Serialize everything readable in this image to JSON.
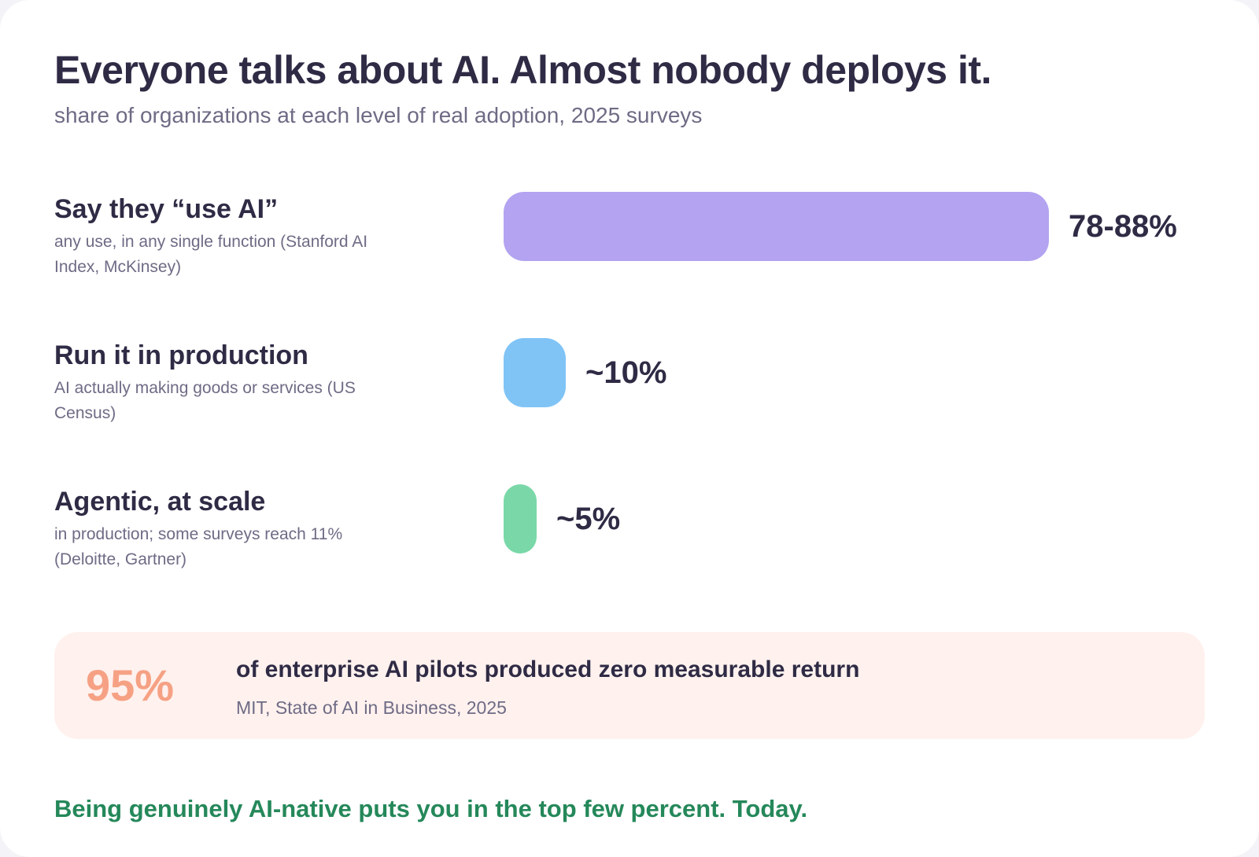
{
  "header": {
    "title": "Everyone talks about AI. Almost nobody deploys it.",
    "subtitle": "share of organizations at each level of real adoption, 2025 surveys"
  },
  "chart_data": {
    "type": "bar",
    "orientation": "horizontal",
    "title": "Everyone talks about AI. Almost nobody deploys it.",
    "subtitle": "share of organizations at each level of real adoption, 2025 surveys",
    "xlabel": "",
    "ylabel": "",
    "unit": "%",
    "grid": false,
    "categories": [
      "Say they “use AI”",
      "Run it in production",
      "Agentic, at scale"
    ],
    "descriptions": [
      "any use, in any single function (Stanford AI Index, McKinsey)",
      "AI actually making goods or services (US Census)",
      "in production; some surveys reach 11% (Deloitte, Gartner)"
    ],
    "values": [
      88,
      10,
      5
    ],
    "value_labels": [
      "78-88%",
      "~10%",
      "~5%"
    ],
    "colors": [
      "#b3a3f0",
      "#80c4f6",
      "#7ad8a8"
    ],
    "xlim": [
      0,
      88
    ]
  },
  "callout": {
    "stat": "95%",
    "text": "of enterprise AI pilots produced zero measurable return",
    "source": "MIT, State of AI in Business, 2025",
    "accent_color": "#f6a184",
    "background_color": "#fff1ee"
  },
  "footer": {
    "text": "Being genuinely AI-native puts you in the top few percent. Today.",
    "color": "#25885a"
  }
}
